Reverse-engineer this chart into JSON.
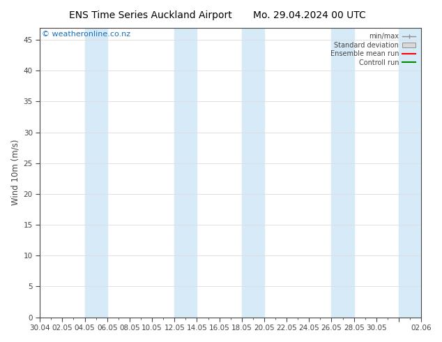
{
  "title_left": "ENS Time Series Auckland Airport",
  "title_right": "Mo. 29.04.2024 00 UTC",
  "ylabel": "Wind 10m (m/s)",
  "watermark": "© weatheronline.co.nz",
  "ylim": [
    0,
    47
  ],
  "yticks": [
    0,
    5,
    10,
    15,
    20,
    25,
    30,
    35,
    40,
    45
  ],
  "xtick_labels": [
    "30.04",
    "02.05",
    "04.05",
    "06.05",
    "08.05",
    "10.05",
    "12.05",
    "14.05",
    "16.05",
    "18.05",
    "20.05",
    "22.05",
    "24.05",
    "26.05",
    "28.05",
    "30.05",
    "",
    "02.06"
  ],
  "xtick_positions": [
    0,
    2,
    4,
    6,
    8,
    10,
    12,
    14,
    16,
    18,
    20,
    22,
    24,
    26,
    28,
    30,
    32,
    34
  ],
  "x_total_days": 34,
  "shaded_bands": [
    [
      4,
      6
    ],
    [
      12,
      14
    ],
    [
      18,
      20
    ],
    [
      26,
      28
    ],
    [
      32,
      34
    ]
  ],
  "band_color": "#d6eaf8",
  "background_color": "#ffffff",
  "plot_bg_color": "#ffffff",
  "legend_items": [
    {
      "label": "min/max",
      "color": "#909090",
      "type": "errorbar"
    },
    {
      "label": "Standard deviation",
      "color": "#c0c0c0",
      "type": "box"
    },
    {
      "label": "Ensemble mean run",
      "color": "#ff0000",
      "type": "line"
    },
    {
      "label": "Controll run",
      "color": "#008000",
      "type": "line"
    }
  ],
  "title_fontsize": 10,
  "watermark_fontsize": 8,
  "watermark_color": "#1a6eb5",
  "axis_color": "#444444",
  "grid_color": "#dddddd",
  "tick_label_fontsize": 7.5,
  "ylabel_fontsize": 8.5
}
